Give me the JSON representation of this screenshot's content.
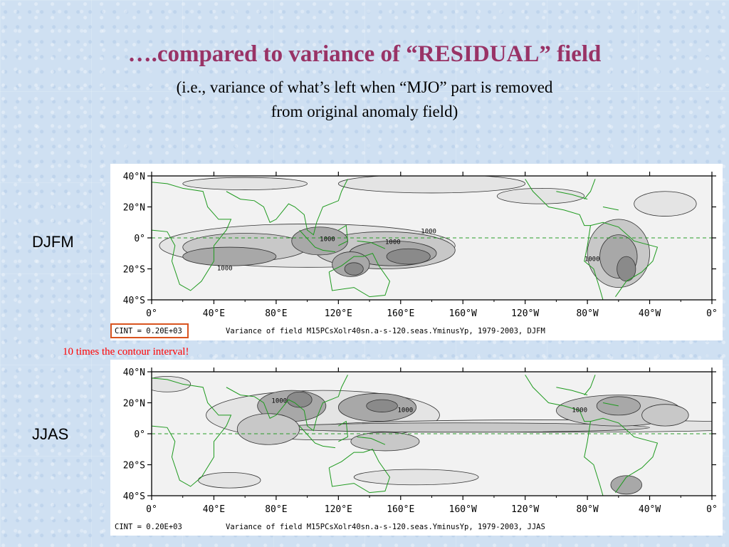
{
  "slide": {
    "title": "….compared to variance of “RESIDUAL” field",
    "subtitle_line1": "(i.e., variance of what’s left when “MJO” part is removed",
    "subtitle_line2": "from original anomaly field)",
    "annotation": "10 times the contour interval!",
    "annotation_color": "#ff0000",
    "title_color": "#993366"
  },
  "chart_data": [
    {
      "type": "contour map",
      "season_label": "DJFM",
      "lat_ticks": [
        "40°N",
        "20°N",
        "0°",
        "20°S",
        "40°S"
      ],
      "lon_ticks": [
        "0°",
        "40°E",
        "80°E",
        "120°E",
        "160°E",
        "160°W",
        "120°W",
        "80°W",
        "40°W",
        "0°"
      ],
      "lat_range": [
        -40,
        40
      ],
      "lon_range": [
        0,
        360
      ],
      "contour_labels": [
        {
          "text": "1000",
          "lon": 178,
          "lat": 3
        },
        {
          "text": "1000",
          "lon": 113,
          "lat": -2
        },
        {
          "text": "1000",
          "lon": 155,
          "lat": -4
        },
        {
          "text": "1000",
          "lon": 47,
          "lat": -21
        },
        {
          "text": "1000",
          "lon": 283,
          "lat": -15
        }
      ],
      "cint": "CINT =  0.20E+03",
      "caption": "Variance of field M15PCsXolr40sn.a-s-120.seas.YminusYp, 1979-2003, DJFM",
      "highlight_cint": true
    },
    {
      "type": "contour map",
      "season_label": "JJAS",
      "lat_ticks": [
        "40°N",
        "20°N",
        "0°",
        "20°S",
        "40°S"
      ],
      "lon_ticks": [
        "0°",
        "40°E",
        "80°E",
        "120°E",
        "160°E",
        "160°W",
        "120°W",
        "80°W",
        "40°W",
        "0°"
      ],
      "lat_range": [
        -40,
        40
      ],
      "lon_range": [
        0,
        360
      ],
      "contour_labels": [
        {
          "text": "1000",
          "lon": 163,
          "lat": 14
        },
        {
          "text": "1000",
          "lon": 275,
          "lat": 14
        },
        {
          "text": "1000",
          "lon": 82,
          "lat": 20
        }
      ],
      "cint": "CINT =  0.20E+03",
      "caption": "Variance of field M15PCsXolr40sn.a-s-120.seas.YminusYp, 1979-2003, JJAS",
      "highlight_cint": false
    }
  ]
}
